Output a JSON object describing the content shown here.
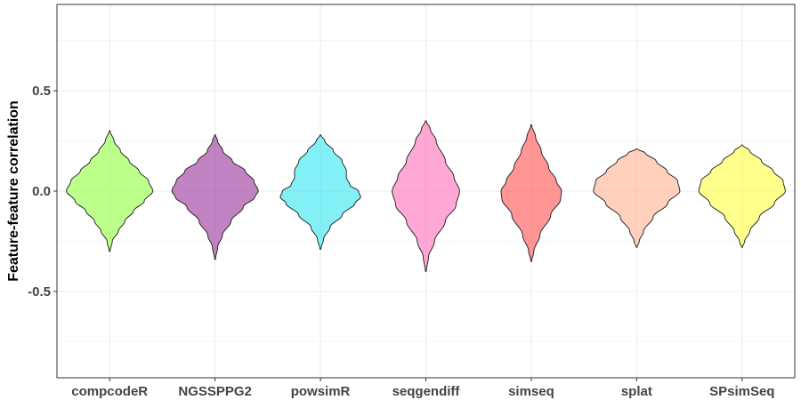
{
  "chart_data": {
    "type": "violin",
    "title": "",
    "xlabel": "",
    "ylabel": "Feature-feature correlation",
    "ylim": [
      -0.93,
      0.93
    ],
    "yticks": [
      -0.5,
      0.0,
      0.5
    ],
    "ytick_labels": [
      "-0.5",
      "0.0",
      "0.5"
    ],
    "grid": true,
    "categories": [
      "compcodeR",
      "NGSSPPG2",
      "powsimR",
      "seqgendiff",
      "simseq",
      "splat",
      "SPsimSeq"
    ],
    "series": [
      {
        "category": "compcodeR",
        "color": "#99ff4d",
        "min": -0.3,
        "max": 0.3,
        "profile": [
          [
            -0.3,
            0.01
          ],
          [
            -0.25,
            0.06
          ],
          [
            -0.2,
            0.2
          ],
          [
            -0.15,
            0.35
          ],
          [
            -0.1,
            0.55
          ],
          [
            -0.05,
            0.8
          ],
          [
            0.0,
            1.0
          ],
          [
            0.05,
            0.9
          ],
          [
            0.1,
            0.68
          ],
          [
            0.15,
            0.45
          ],
          [
            0.2,
            0.25
          ],
          [
            0.25,
            0.1
          ],
          [
            0.3,
            0.01
          ]
        ]
      },
      {
        "category": "NGSSPPG2",
        "color": "#a040a0",
        "min": -0.34,
        "max": 0.28,
        "profile": [
          [
            -0.34,
            0.01
          ],
          [
            -0.28,
            0.06
          ],
          [
            -0.22,
            0.17
          ],
          [
            -0.15,
            0.37
          ],
          [
            -0.08,
            0.65
          ],
          [
            -0.03,
            0.92
          ],
          [
            0.0,
            1.0
          ],
          [
            0.05,
            0.9
          ],
          [
            0.1,
            0.7
          ],
          [
            0.15,
            0.4
          ],
          [
            0.2,
            0.18
          ],
          [
            0.25,
            0.06
          ],
          [
            0.28,
            0.01
          ]
        ]
      },
      {
        "category": "powsimR",
        "color": "#40e8f0",
        "min": -0.29,
        "max": 0.28,
        "profile": [
          [
            -0.29,
            0.01
          ],
          [
            -0.24,
            0.07
          ],
          [
            -0.18,
            0.22
          ],
          [
            -0.12,
            0.5
          ],
          [
            -0.06,
            0.8
          ],
          [
            -0.03,
            0.93
          ],
          [
            0.0,
            0.88
          ],
          [
            0.03,
            0.68
          ],
          [
            0.07,
            0.6
          ],
          [
            0.1,
            0.6
          ],
          [
            0.15,
            0.5
          ],
          [
            0.2,
            0.3
          ],
          [
            0.25,
            0.1
          ],
          [
            0.28,
            0.01
          ]
        ]
      },
      {
        "category": "seqgendiff",
        "color": "#ff79c0",
        "min": -0.4,
        "max": 0.35,
        "profile": [
          [
            -0.4,
            0.01
          ],
          [
            -0.33,
            0.06
          ],
          [
            -0.25,
            0.2
          ],
          [
            -0.15,
            0.45
          ],
          [
            -0.07,
            0.7
          ],
          [
            0.0,
            0.78
          ],
          [
            0.07,
            0.65
          ],
          [
            0.15,
            0.45
          ],
          [
            0.25,
            0.24
          ],
          [
            0.31,
            0.1
          ],
          [
            0.35,
            0.01
          ]
        ]
      },
      {
        "category": "simseq",
        "color": "#ff5c5c",
        "min": -0.35,
        "max": 0.33,
        "profile": [
          [
            -0.35,
            0.01
          ],
          [
            -0.3,
            0.06
          ],
          [
            -0.22,
            0.2
          ],
          [
            -0.12,
            0.45
          ],
          [
            -0.04,
            0.68
          ],
          [
            0.0,
            0.7
          ],
          [
            0.05,
            0.58
          ],
          [
            0.12,
            0.4
          ],
          [
            0.2,
            0.23
          ],
          [
            0.27,
            0.1
          ],
          [
            0.33,
            0.01
          ]
        ]
      },
      {
        "category": "splat",
        "color": "#ffb899",
        "min": -0.28,
        "max": 0.21,
        "profile": [
          [
            -0.28,
            0.01
          ],
          [
            -0.25,
            0.06
          ],
          [
            -0.2,
            0.16
          ],
          [
            -0.13,
            0.38
          ],
          [
            -0.06,
            0.72
          ],
          [
            0.0,
            1.0
          ],
          [
            0.05,
            0.95
          ],
          [
            0.1,
            0.7
          ],
          [
            0.15,
            0.45
          ],
          [
            0.19,
            0.2
          ],
          [
            0.21,
            0.01
          ]
        ]
      },
      {
        "category": "SPsimSeq",
        "color": "#ffff4d",
        "min": -0.28,
        "max": 0.23,
        "profile": [
          [
            -0.28,
            0.01
          ],
          [
            -0.25,
            0.06
          ],
          [
            -0.2,
            0.18
          ],
          [
            -0.13,
            0.4
          ],
          [
            -0.06,
            0.75
          ],
          [
            0.0,
            1.0
          ],
          [
            0.05,
            0.95
          ],
          [
            0.1,
            0.72
          ],
          [
            0.15,
            0.45
          ],
          [
            0.2,
            0.18
          ],
          [
            0.23,
            0.01
          ]
        ]
      }
    ]
  }
}
